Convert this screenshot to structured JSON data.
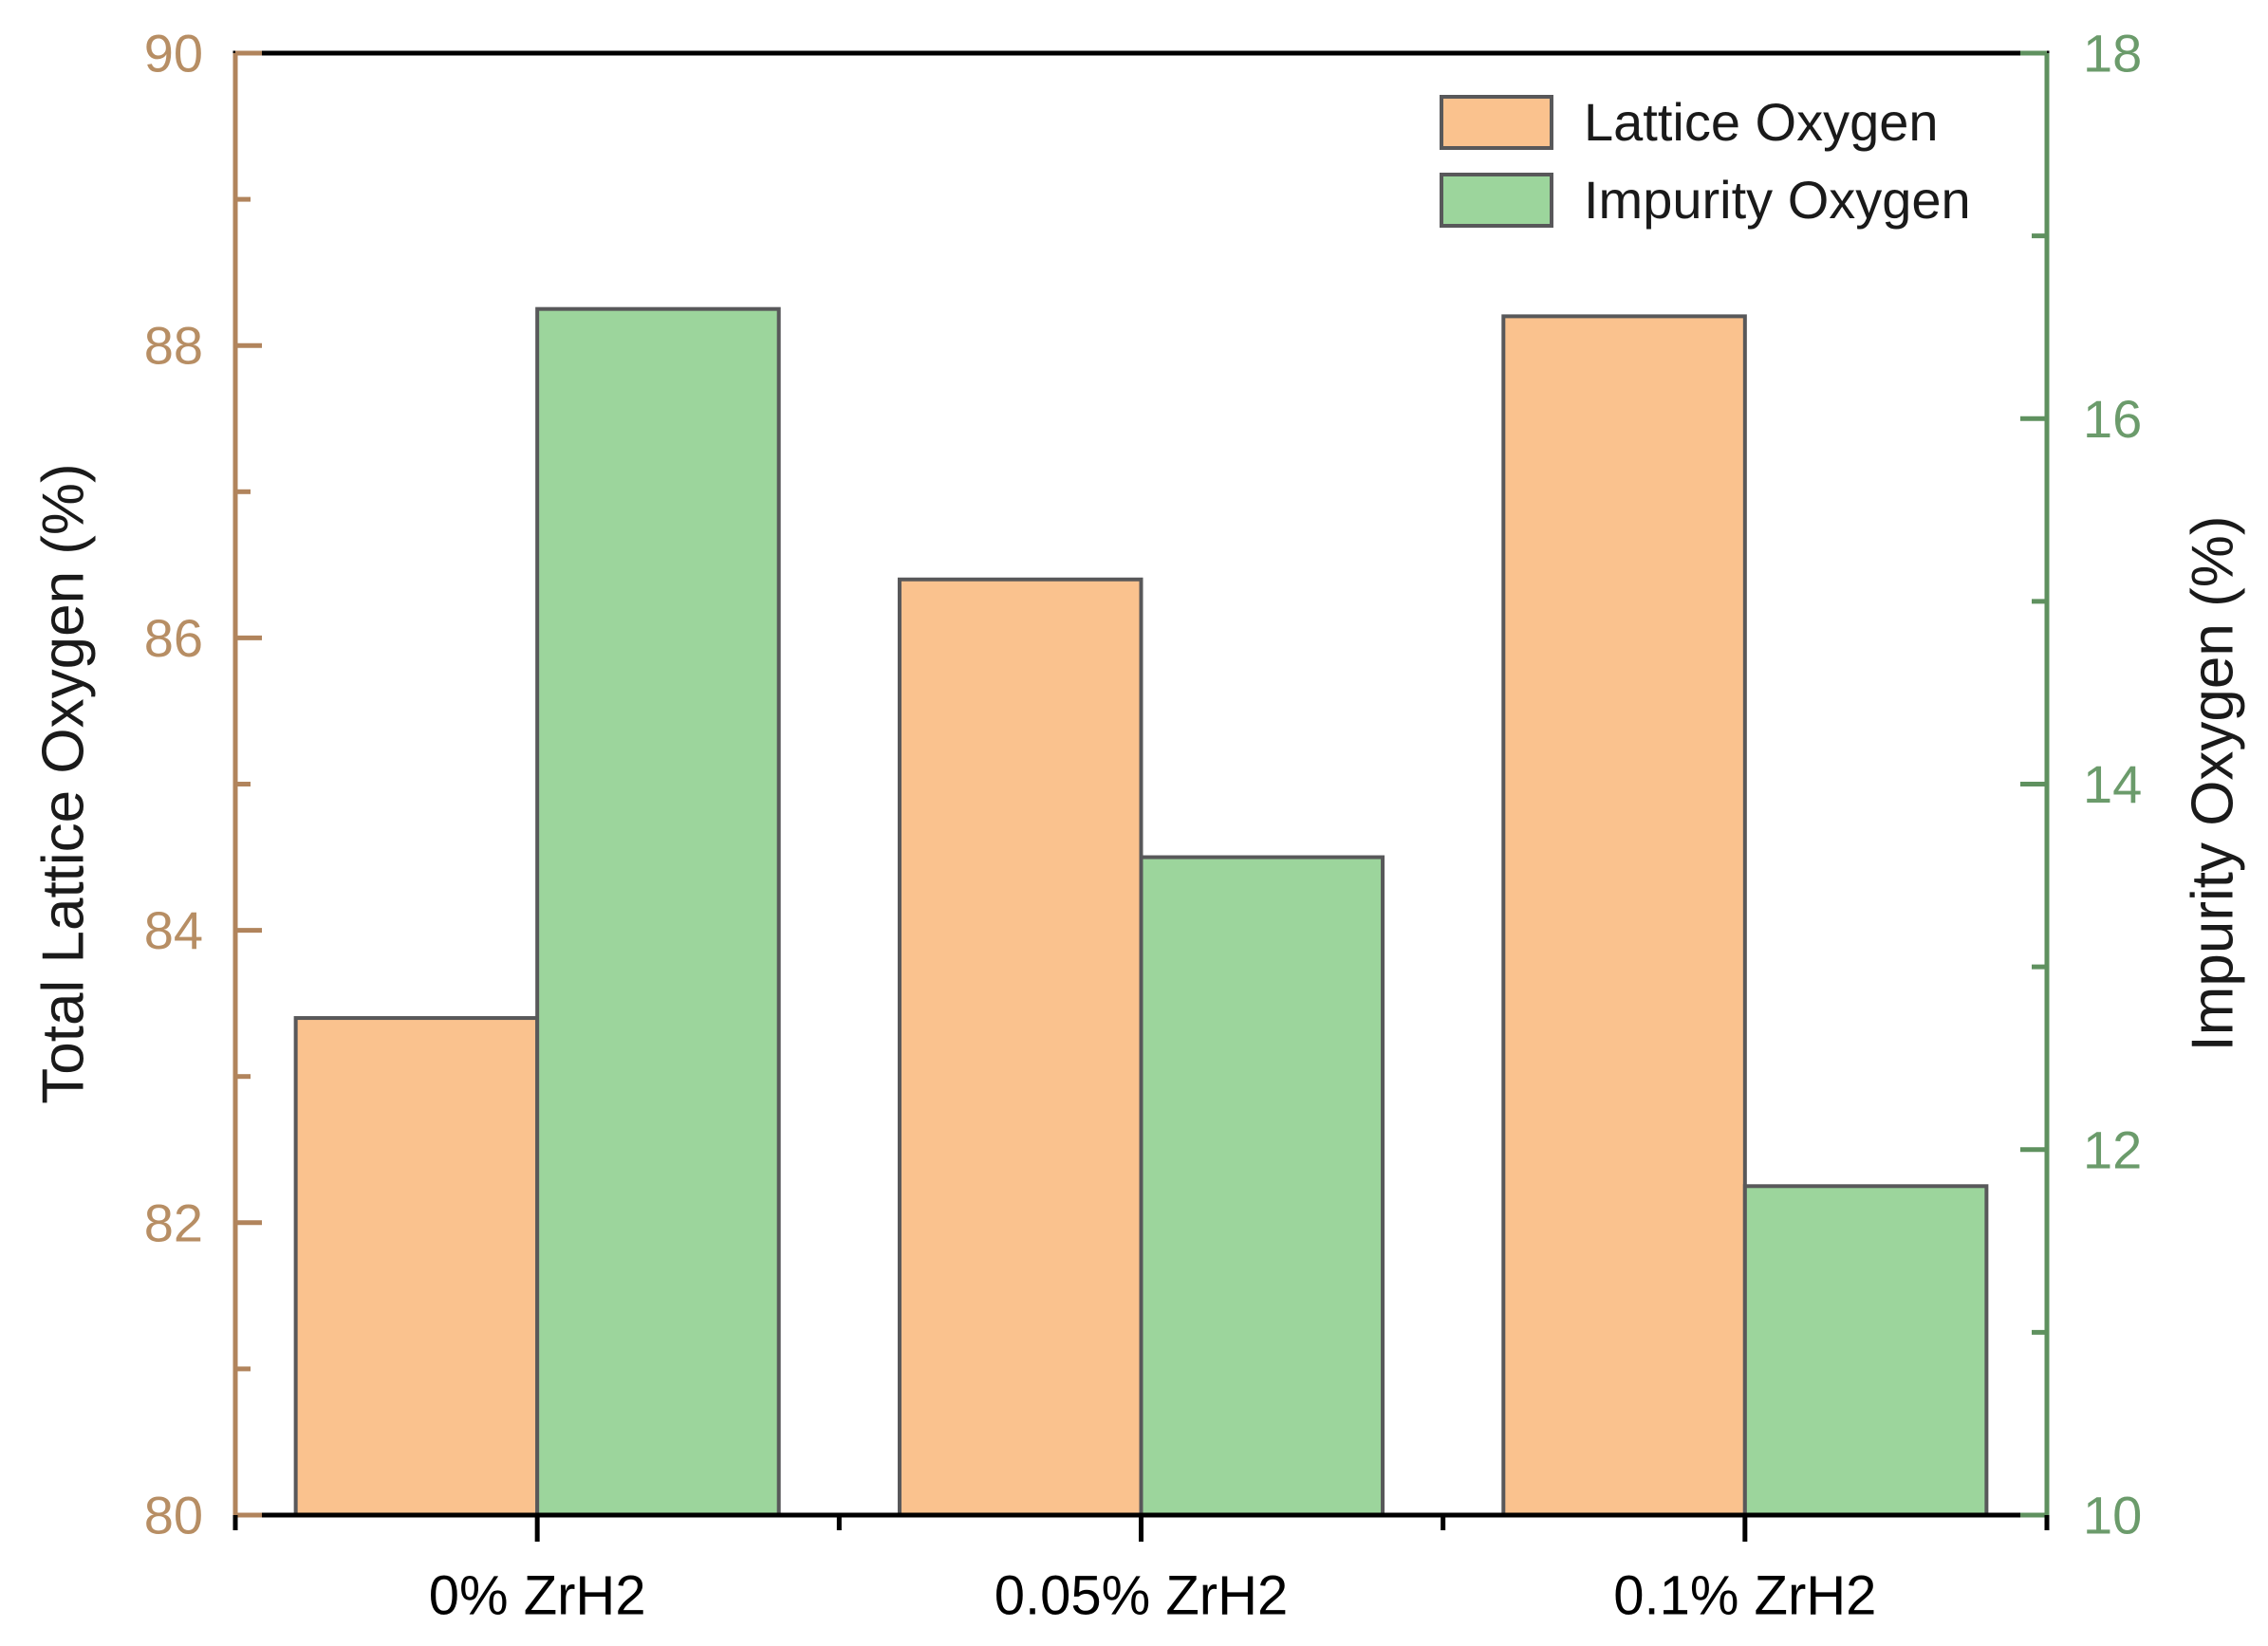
{
  "chart_data": {
    "type": "bar",
    "categories": [
      "0% ZrH2",
      "0.05% ZrH2",
      "0.1% ZrH2"
    ],
    "series": [
      {
        "name": "Lattice Oxygen",
        "axis": "left",
        "color": "#FAC28E",
        "values": [
          83.4,
          86.4,
          88.2
        ]
      },
      {
        "name": "Impurity Oxygen",
        "axis": "right",
        "color": "#9CD59C",
        "values": [
          16.6,
          13.6,
          11.8
        ]
      }
    ],
    "bar_border_color": "#58585a",
    "left_axis": {
      "label": "Total Lattice Oxygen (%)",
      "min": 80,
      "max": 90,
      "major_ticks": [
        80,
        82,
        84,
        86,
        88,
        90
      ],
      "minor_ticks": [
        81,
        83,
        85,
        87,
        89
      ],
      "tick_labels": [
        "80",
        "82",
        "84",
        "86",
        "88",
        "90"
      ],
      "axis_color": "#B1845C",
      "label_color": "#B78E64"
    },
    "right_axis": {
      "label": "Impurity Oxygen (%)",
      "min": 10,
      "max": 18,
      "major_ticks": [
        10,
        12,
        14,
        16,
        18
      ],
      "minor_ticks": [
        11,
        13,
        15,
        17
      ],
      "tick_labels": [
        "10",
        "12",
        "14",
        "16",
        "18"
      ],
      "axis_color": "#5F915F",
      "label_color": "#6B9B6B"
    },
    "x_axis": {
      "color": "#000000",
      "label_color": "#000000"
    },
    "legend": {
      "position": "top-right",
      "entries": [
        {
          "label": "Lattice Oxygen",
          "color": "#FAC28E"
        },
        {
          "label": "Impurity Oxygen",
          "color": "#9CD59C"
        }
      ]
    },
    "grid": false,
    "title": "",
    "xlabel": ""
  }
}
